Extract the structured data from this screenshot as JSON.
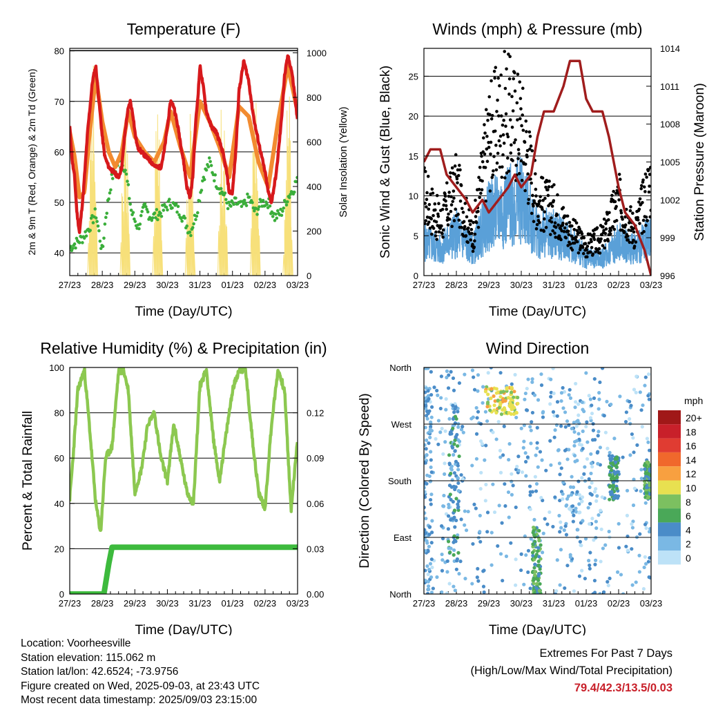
{
  "colors": {
    "temp2m": "#d7191c",
    "temp9m": "#f28b30",
    "dew": "#3aae3a",
    "solar": "#f7e07a",
    "wind": "#5aa0d8",
    "gust": "#000000",
    "pressure": "#a01d1d",
    "rh": "#8cc850",
    "precip": "#3dba3d"
  },
  "chart_data": [
    {
      "type": "line",
      "title": "Temperature (F)",
      "xlabel": "Time (Day/UTC)",
      "ylabel": "2m & 9m T (Red, Orange) & 2m Td (Green)",
      "y2label": "Solar Insolation (Yellow)",
      "xticks": [
        "27/23",
        "28/23",
        "29/23",
        "30/23",
        "31/23",
        "01/23",
        "02/23",
        "03/23"
      ],
      "ylim": [
        35.5,
        80.5
      ],
      "yticks": [
        40,
        50,
        60,
        70,
        80
      ],
      "y2lim": [
        0,
        1020
      ],
      "y2ticks": [
        0,
        200,
        400,
        600,
        800,
        1000
      ],
      "grid": true,
      "series": [
        {
          "key": "temp2m",
          "x": [
            0,
            0.08,
            0.15,
            0.22,
            0.3,
            0.42,
            0.55,
            0.7,
            0.8,
            0.9,
            1.0,
            1.08,
            1.2,
            1.35,
            1.5,
            1.6,
            1.7,
            1.78,
            1.86,
            1.95,
            2.0,
            2.08,
            2.2,
            2.35,
            2.5,
            2.65,
            2.8,
            2.9,
            3.0,
            3.1,
            3.2,
            3.35,
            3.5,
            3.6,
            3.7,
            3.78,
            3.86,
            3.95,
            4.0,
            4.1,
            4.2,
            4.35,
            4.5,
            4.6,
            4.7,
            4.82,
            4.9,
            5.0,
            5.1,
            5.2,
            5.35,
            5.5,
            5.6,
            5.7,
            5.8,
            5.9,
            6.0,
            6.1,
            6.2,
            6.35,
            6.5,
            6.6,
            6.7,
            6.82,
            6.9,
            7.0
          ],
          "values": [
            65,
            58,
            55,
            48,
            44,
            52,
            64,
            74,
            77,
            70,
            63,
            59,
            57,
            56,
            55,
            57,
            64,
            68,
            70,
            67,
            64,
            61,
            60,
            59,
            58,
            57,
            57,
            60,
            65,
            70,
            69,
            64,
            58,
            53,
            51,
            55,
            65,
            72,
            77,
            73,
            68,
            65,
            64,
            62,
            60,
            56,
            52,
            52,
            60,
            72,
            78,
            74,
            69,
            65,
            62,
            59,
            56,
            52,
            50,
            56,
            66,
            75,
            79,
            76,
            72,
            66
          ]
        },
        {
          "key": "temp9m",
          "x": [
            0,
            0.15,
            0.3,
            0.45,
            0.6,
            0.8,
            1.0,
            1.2,
            1.4,
            1.6,
            1.8,
            2.0,
            2.3,
            2.6,
            2.9,
            3.1,
            3.4,
            3.7,
            4.0,
            4.3,
            4.6,
            4.9,
            5.2,
            5.5,
            5.8,
            6.1,
            6.4,
            6.7,
            7.0
          ],
          "values": [
            64,
            59,
            51,
            52,
            63,
            75,
            66,
            60,
            57,
            60,
            68,
            63,
            60,
            58,
            62,
            68,
            61,
            55,
            70,
            66,
            61,
            55,
            69,
            67,
            58,
            53,
            66,
            77,
            68
          ]
        },
        {
          "key": "dew",
          "x": [
            0,
            0.2,
            0.4,
            0.6,
            0.8,
            0.9,
            1.0,
            1.1,
            1.3,
            1.5,
            1.7,
            1.9,
            2.1,
            2.3,
            2.5,
            2.8,
            3.1,
            3.4,
            3.7,
            3.9,
            4.1,
            4.3,
            4.5,
            4.7,
            4.9,
            5.1,
            5.3,
            5.5,
            5.7,
            5.9,
            6.1,
            6.3,
            6.5,
            6.7,
            6.9,
            7.0
          ],
          "values": [
            41,
            42,
            43,
            45,
            48,
            44,
            40,
            47,
            55,
            58,
            57,
            48,
            45,
            49,
            47,
            48,
            50,
            48,
            44,
            48,
            55,
            58,
            54,
            52,
            49,
            50,
            49,
            51,
            48,
            50,
            50,
            47,
            48,
            51,
            53,
            55
          ]
        },
        {
          "key": "solar",
          "x": [
            0.55,
            0.7,
            0.85,
            1.55,
            1.7,
            1.85,
            2.55,
            2.7,
            2.85,
            3.55,
            3.7,
            3.85,
            4.55,
            4.7,
            4.85,
            5.55,
            5.7,
            5.85,
            6.55,
            6.7,
            6.85
          ],
          "values": [
            0,
            1000,
            0,
            0,
            900,
            0,
            0,
            950,
            0,
            0,
            820,
            0,
            0,
            880,
            0,
            0,
            860,
            0,
            0,
            960,
            0
          ]
        }
      ]
    },
    {
      "type": "line",
      "title": "Winds (mph) & Pressure (mb)",
      "xlabel": "Time (Day/UTC)",
      "ylabel": "Sonic Wind & Gust (Blue, Black)",
      "y2label": "Station Pressure (Maroon)",
      "xticks": [
        "27/23",
        "28/23",
        "29/23",
        "30/23",
        "31/23",
        "01/23",
        "02/23",
        "03/23"
      ],
      "ylim": [
        0,
        28.5
      ],
      "yticks": [
        0,
        5,
        10,
        15,
        20,
        25
      ],
      "y2lim": [
        996,
        1014
      ],
      "y2ticks": [
        996,
        999,
        1002,
        1005,
        1008,
        1011,
        1014
      ],
      "grid": true,
      "series": [
        {
          "key": "wind",
          "x": [
            0,
            0.5,
            1.0,
            1.5,
            2.0,
            2.5,
            3.0,
            3.5,
            4.0,
            4.5,
            5.0,
            5.5,
            6.0,
            6.5,
            7.0
          ],
          "values": [
            4,
            3,
            5,
            3,
            7,
            8,
            9,
            5,
            5,
            4,
            2,
            2,
            4,
            3,
            5
          ]
        },
        {
          "key": "gust",
          "x": [
            0,
            0.5,
            1.0,
            1.5,
            2.0,
            2.5,
            3.0,
            3.5,
            4.0,
            4.5,
            5.0,
            5.5,
            6.0,
            6.5,
            7.0
          ],
          "values": [
            11,
            7,
            12,
            5,
            19,
            22,
            20,
            10,
            9,
            6,
            4,
            5,
            10,
            6,
            13
          ]
        },
        {
          "key": "pressure",
          "x": [
            0,
            0.2,
            0.5,
            0.7,
            1.0,
            1.3,
            1.5,
            1.8,
            2.0,
            2.3,
            2.6,
            2.8,
            3.0,
            3.3,
            3.5,
            3.7,
            4.0,
            4.3,
            4.5,
            4.8,
            5.0,
            5.2,
            5.5,
            5.7,
            6.0,
            6.2,
            6.5,
            6.8,
            7.0
          ],
          "values": [
            1005,
            1006,
            1006,
            1004,
            1003,
            1002,
            1001,
            1002,
            1001,
            1002,
            1003,
            1004,
            1003,
            1004,
            1007,
            1009,
            1009,
            1011,
            1013,
            1013,
            1010,
            1009,
            1009,
            1007,
            1003,
            1001,
            1000,
            998,
            996
          ]
        }
      ]
    },
    {
      "type": "line",
      "title": "Relative Humidity (%) & Precipitation (in)",
      "xlabel": "Time (Day/UTC)",
      "ylabel": "Percent & Total Rainfall",
      "xticks": [
        "27/23",
        "28/23",
        "29/23",
        "30/23",
        "31/23",
        "01/23",
        "02/23",
        "03/23"
      ],
      "ylim": [
        0,
        100
      ],
      "yticks": [
        0,
        20,
        40,
        60,
        80,
        100
      ],
      "y2lim": [
        0,
        0.15
      ],
      "y2ticks": [
        "0.00",
        "0.03",
        "0.06",
        "0.09",
        "0.12"
      ],
      "grid": true,
      "series": [
        {
          "key": "rh",
          "x": [
            0,
            0.1,
            0.25,
            0.45,
            0.6,
            0.8,
            0.95,
            1.1,
            1.3,
            1.5,
            1.65,
            1.8,
            2.0,
            2.2,
            2.4,
            2.6,
            2.8,
            3.0,
            3.2,
            3.4,
            3.6,
            3.8,
            4.0,
            4.2,
            4.4,
            4.6,
            4.8,
            5.0,
            5.2,
            5.4,
            5.6,
            5.8,
            6.0,
            6.2,
            6.4,
            6.6,
            6.8,
            7.0
          ],
          "values": [
            42,
            60,
            90,
            99,
            75,
            40,
            27,
            60,
            65,
            98,
            99,
            90,
            45,
            55,
            75,
            80,
            60,
            50,
            75,
            60,
            45,
            40,
            92,
            99,
            70,
            50,
            70,
            90,
            99,
            99,
            70,
            45,
            38,
            75,
            99,
            90,
            37,
            68
          ]
        },
        {
          "key": "precip",
          "x": [
            0,
            0.9,
            1.05,
            1.2,
            1.3,
            7.0
          ],
          "values": [
            0,
            0,
            0,
            0.02,
            0.031,
            0.031
          ]
        }
      ]
    },
    {
      "type": "scatter",
      "title": "Wind Direction",
      "xlabel": "Time (Day/UTC)",
      "ylabel": "Direction (Colored By Speed)",
      "xticks": [
        "27/23",
        "28/23",
        "29/23",
        "30/23",
        "31/23",
        "01/23",
        "02/23",
        "03/23"
      ],
      "yticks": [
        "North",
        "East",
        "South",
        "West",
        "North"
      ],
      "grid": true,
      "legend": {
        "title": "mph",
        "labels": [
          "20+",
          "18",
          "16",
          "14",
          "12",
          "10",
          "8",
          "6",
          "4",
          "2",
          "0"
        ],
        "colors": [
          "#a01818",
          "#c8202a",
          "#e03c32",
          "#f0682c",
          "#f8a040",
          "#e8e050",
          "#7cc060",
          "#4aa858",
          "#4a8cc8",
          "#7ab8e4",
          "#bde2f7"
        ]
      },
      "clusters": [
        {
          "day_start": 0.0,
          "day_end": 0.25,
          "dir_start": 0,
          "dir_end": 330,
          "speed": 3
        },
        {
          "day_start": 0.75,
          "day_end": 1.1,
          "dir_start": 20,
          "dir_end": 300,
          "speed": 4
        },
        {
          "day_start": 1.9,
          "day_end": 2.9,
          "dir_start": 285,
          "dir_end": 330,
          "speed": 10
        },
        {
          "day_start": 3.35,
          "day_end": 3.6,
          "dir_start": 0,
          "dir_end": 110,
          "speed": 6
        },
        {
          "day_start": 4.0,
          "day_end": 5.2,
          "dir_start": 100,
          "dir_end": 320,
          "speed": 2
        },
        {
          "day_start": 5.7,
          "day_end": 6.0,
          "dir_start": 150,
          "dir_end": 220,
          "speed": 5
        },
        {
          "day_start": 6.8,
          "day_end": 7.0,
          "dir_start": 150,
          "dir_end": 210,
          "speed": 6
        }
      ]
    }
  ],
  "info": {
    "location": "Location: Voorheesville",
    "elevation": "Station elevation: 115.062 m",
    "latlon": "Station lat/lon: 42.6524; -73.9756",
    "created": "Figure created on Wed, 2025-09-03, at 23:43 UTC",
    "recent": "Most recent data timestamp: 2025/09/03 23:15:00"
  },
  "extremes": {
    "line1": "Extremes For Past 7 Days",
    "line2": "(High/Low/Max Wind/Total Precipitation)",
    "values": "79.4/42.3/13.5/0.03"
  }
}
